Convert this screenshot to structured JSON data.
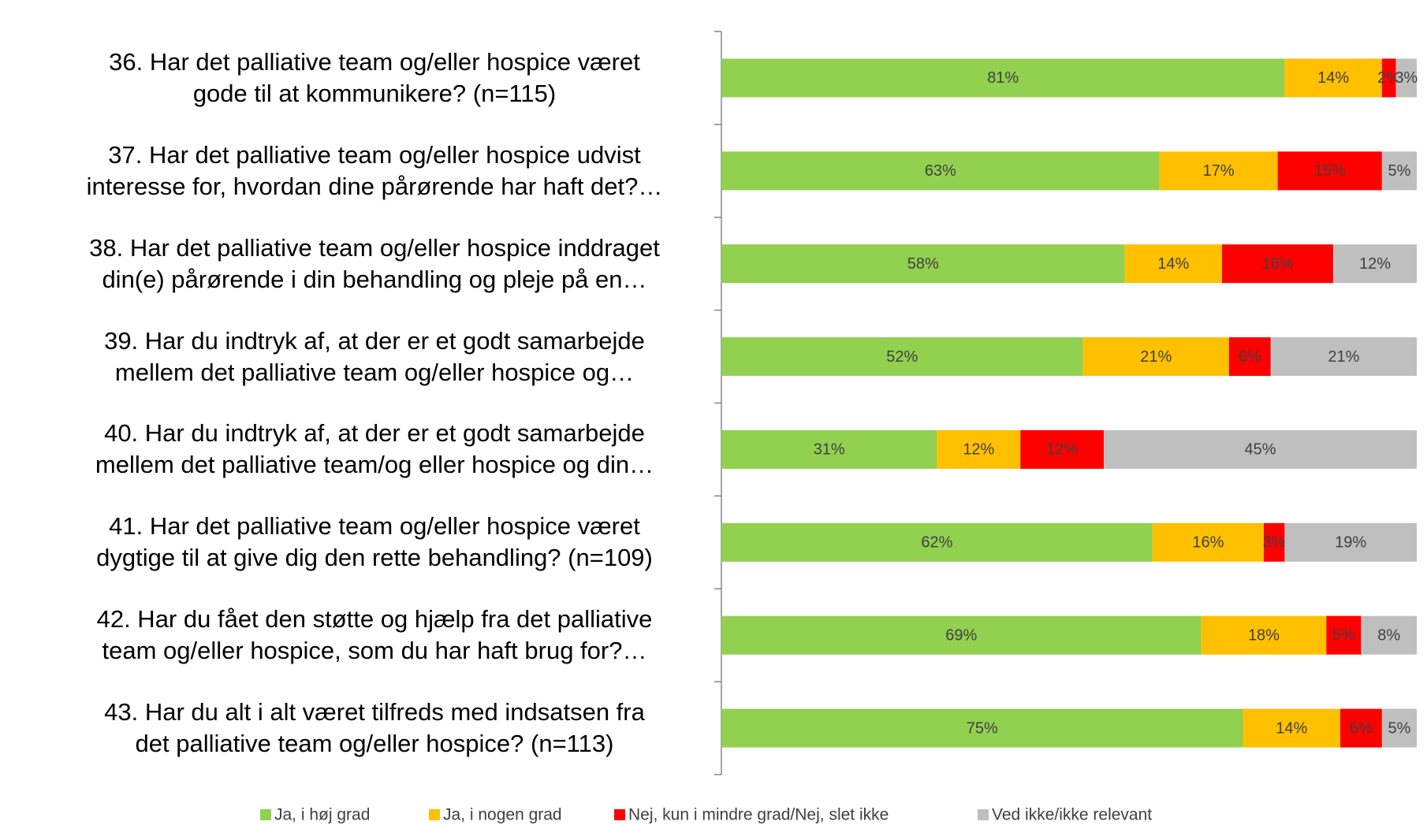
{
  "chart_data": {
    "type": "stacked_bar_horizontal",
    "categories": [
      "36. Har det palliative team og/eller hospice været\ngode til at kommunikere? (n=115)",
      "37. Har det palliative team og/eller hospice udvist\ninteresse for, hvordan dine pårørende har haft det?…",
      "38. Har det palliative team og/eller hospice inddraget\ndin(e) pårørende i din behandling og pleje på en…",
      "39. Har du indtryk af, at der er et godt samarbejde\nmellem det palliative team og/eller hospice og…",
      "40. Har du indtryk af, at der er et godt samarbejde\nmellem det palliative team/og eller hospice og din…",
      "41. Har det palliative team og/eller hospice været\ndygtige til at give dig den rette behandling? (n=109)",
      "42. Har du fået den støtte og hjælp fra det palliative\nteam og/eller hospice, som du har haft brug for?…",
      "43. Har du alt i alt været tilfreds med indsatsen fra\ndet palliative team og/eller hospice? (n=113)"
    ],
    "series": [
      {
        "name": "Ja, i høj grad",
        "color": "#92d050",
        "values": [
          81,
          63,
          58,
          52,
          31,
          62,
          69,
          75
        ],
        "value_labels": [
          "81%",
          "63%",
          "58%",
          "52%",
          "31%",
          "62%",
          "69%",
          "75%"
        ]
      },
      {
        "name": "Ja, i nogen grad",
        "color": "#ffc000",
        "values": [
          14,
          17,
          14,
          21,
          12,
          16,
          18,
          14
        ],
        "value_labels": [
          "14%",
          "17%",
          "14%",
          "21%",
          "12%",
          "16%",
          "18%",
          "14%"
        ]
      },
      {
        "name": "Nej, kun i mindre grad/Nej, slet ikke",
        "color": "#ff0000",
        "values": [
          2,
          15,
          16,
          6,
          12,
          3,
          5,
          6
        ],
        "value_labels": [
          "2%",
          "15%",
          "16%",
          "6%",
          "12%",
          "3%",
          "5%",
          "6%"
        ]
      },
      {
        "name": "Ved ikke/ikke relevant",
        "color": "#bfbfbf",
        "values": [
          3,
          5,
          12,
          21,
          45,
          19,
          8,
          5
        ],
        "value_labels": [
          "3%",
          "5%",
          "12%",
          "21%",
          "45%",
          "19%",
          "8%",
          "5%"
        ]
      }
    ],
    "xlim": [
      0,
      100
    ]
  }
}
